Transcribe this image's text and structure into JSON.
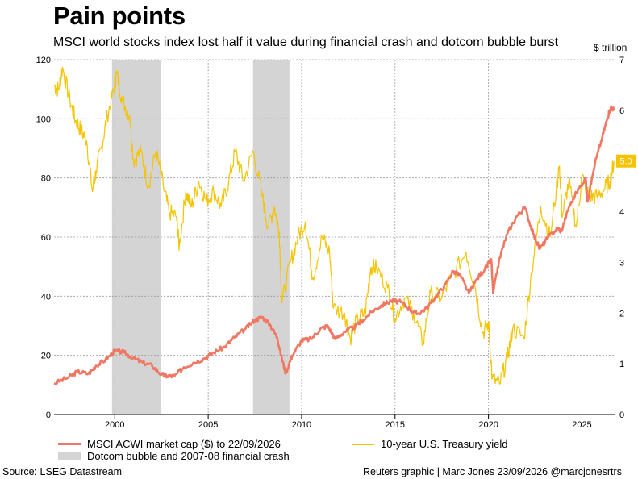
{
  "chart_data": {
    "type": "line",
    "title": "Pain points",
    "subtitle": "MSCI world stocks index lost half it value during financial crash and dotcom bubble burst",
    "left_axis": {
      "ticks": [
        0,
        20,
        40,
        60,
        80,
        100,
        120
      ],
      "range": [
        0,
        120
      ]
    },
    "right_axis": {
      "unit": "$ trillion",
      "ticks": [
        0,
        1,
        2,
        3,
        4,
        5,
        6,
        7
      ],
      "range": [
        0,
        7
      ]
    },
    "x_axis": {
      "ticks": [
        2000,
        2005,
        2010,
        2015,
        2020,
        2025
      ],
      "range": [
        1996.75,
        2026.75
      ]
    },
    "grid": true,
    "shaded_periods": [
      {
        "start": 1999.85,
        "end": 2002.45
      },
      {
        "start": 2007.4,
        "end": 2009.35
      }
    ],
    "series": [
      {
        "name": "MSCI ACWI market cap ($) to 22/09/2026",
        "color": "#f07863",
        "axis": "left",
        "points": [
          [
            1996.75,
            10.5
          ],
          [
            1997.5,
            12.5
          ],
          [
            1998.0,
            14.5
          ],
          [
            1998.6,
            13.8
          ],
          [
            1999.0,
            16.5
          ],
          [
            1999.5,
            18.5
          ],
          [
            2000.0,
            21.5
          ],
          [
            2000.5,
            21.0
          ],
          [
            2001.0,
            19.0
          ],
          [
            2001.5,
            17.5
          ],
          [
            2002.0,
            16.5
          ],
          [
            2002.5,
            13.5
          ],
          [
            2002.8,
            13.0
          ],
          [
            2003.2,
            13.0
          ],
          [
            2003.7,
            16.0
          ],
          [
            2004.2,
            17.5
          ],
          [
            2004.8,
            19.0
          ],
          [
            2005.3,
            21.0
          ],
          [
            2005.9,
            23.0
          ],
          [
            2006.4,
            26.0
          ],
          [
            2007.0,
            29.0
          ],
          [
            2007.5,
            32.0
          ],
          [
            2007.9,
            33.0
          ],
          [
            2008.3,
            30.5
          ],
          [
            2008.7,
            26.0
          ],
          [
            2008.9,
            20.0
          ],
          [
            2009.15,
            14.0
          ],
          [
            2009.5,
            20.0
          ],
          [
            2010.0,
            25.0
          ],
          [
            2010.5,
            25.5
          ],
          [
            2011.0,
            29.0
          ],
          [
            2011.4,
            30.0
          ],
          [
            2011.8,
            25.5
          ],
          [
            2012.3,
            28.0
          ],
          [
            2012.8,
            29.5
          ],
          [
            2013.3,
            32.0
          ],
          [
            2013.8,
            35.0
          ],
          [
            2014.3,
            37.0
          ],
          [
            2014.8,
            38.5
          ],
          [
            2015.3,
            38.0
          ],
          [
            2015.8,
            35.5
          ],
          [
            2016.2,
            34.0
          ],
          [
            2016.7,
            36.0
          ],
          [
            2017.2,
            40.0
          ],
          [
            2017.7,
            44.0
          ],
          [
            2018.1,
            48.5
          ],
          [
            2018.5,
            47.0
          ],
          [
            2018.95,
            41.0
          ],
          [
            2019.4,
            46.0
          ],
          [
            2019.9,
            50.0
          ],
          [
            2020.15,
            52.5
          ],
          [
            2020.25,
            41.0
          ],
          [
            2020.6,
            53.0
          ],
          [
            2021.0,
            61.0
          ],
          [
            2021.5,
            67.0
          ],
          [
            2021.95,
            70.0
          ],
          [
            2022.4,
            61.0
          ],
          [
            2022.75,
            56.0
          ],
          [
            2023.2,
            60.0
          ],
          [
            2023.7,
            63.0
          ],
          [
            2023.9,
            62.0
          ],
          [
            2024.3,
            70.0
          ],
          [
            2024.7,
            75.0
          ],
          [
            2025.2,
            80.0
          ],
          [
            2025.3,
            72.0
          ],
          [
            2025.7,
            85.0
          ],
          [
            2026.1,
            94.0
          ],
          [
            2026.35,
            100.0
          ],
          [
            2026.55,
            104.0
          ],
          [
            2026.72,
            103.0
          ]
        ]
      },
      {
        "name": "10-year U.S. Treasury yield",
        "color": "#f5c400",
        "axis": "right",
        "last_label": "5.0",
        "points": [
          [
            1996.75,
            6.5
          ],
          [
            1997.0,
            6.4
          ],
          [
            1997.2,
            6.85
          ],
          [
            1997.6,
            6.2
          ],
          [
            1997.9,
            5.8
          ],
          [
            1998.2,
            5.6
          ],
          [
            1998.5,
            5.4
          ],
          [
            1998.8,
            4.4
          ],
          [
            1999.0,
            4.8
          ],
          [
            1999.3,
            5.3
          ],
          [
            1999.6,
            5.9
          ],
          [
            1999.95,
            6.4
          ],
          [
            2000.1,
            6.75
          ],
          [
            2000.4,
            6.2
          ],
          [
            2000.8,
            5.9
          ],
          [
            2001.0,
            5.0
          ],
          [
            2001.4,
            5.2
          ],
          [
            2001.8,
            4.5
          ],
          [
            2002.2,
            5.2
          ],
          [
            2002.6,
            4.5
          ],
          [
            2002.9,
            4.0
          ],
          [
            2003.3,
            3.9
          ],
          [
            2003.45,
            3.3
          ],
          [
            2003.8,
            4.4
          ],
          [
            2004.1,
            4.1
          ],
          [
            2004.5,
            4.6
          ],
          [
            2004.9,
            4.2
          ],
          [
            2005.3,
            4.4
          ],
          [
            2005.7,
            4.1
          ],
          [
            2006.1,
            4.6
          ],
          [
            2006.45,
            5.2
          ],
          [
            2006.9,
            4.6
          ],
          [
            2007.4,
            5.2
          ],
          [
            2007.9,
            4.3
          ],
          [
            2008.2,
            3.7
          ],
          [
            2008.55,
            4.1
          ],
          [
            2008.8,
            3.6
          ],
          [
            2008.95,
            2.2
          ],
          [
            2009.4,
            3.0
          ],
          [
            2009.8,
            3.5
          ],
          [
            2010.2,
            3.8
          ],
          [
            2010.6,
            2.7
          ],
          [
            2011.1,
            3.5
          ],
          [
            2011.5,
            3.2
          ],
          [
            2011.7,
            2.1
          ],
          [
            2012.3,
            2.0
          ],
          [
            2012.6,
            1.5
          ],
          [
            2013.0,
            1.9
          ],
          [
            2013.4,
            2.0
          ],
          [
            2013.7,
            2.9
          ],
          [
            2014.0,
            2.9
          ],
          [
            2014.6,
            2.5
          ],
          [
            2015.0,
            1.9
          ],
          [
            2015.5,
            2.3
          ],
          [
            2016.0,
            2.0
          ],
          [
            2016.5,
            1.4
          ],
          [
            2016.9,
            2.4
          ],
          [
            2017.5,
            2.3
          ],
          [
            2018.0,
            2.7
          ],
          [
            2018.8,
            3.2
          ],
          [
            2019.3,
            2.5
          ],
          [
            2019.7,
            1.6
          ],
          [
            2020.0,
            1.8
          ],
          [
            2020.2,
            0.7
          ],
          [
            2020.6,
            0.6
          ],
          [
            2021.0,
            1.1
          ],
          [
            2021.3,
            1.7
          ],
          [
            2021.9,
            1.5
          ],
          [
            2022.3,
            2.8
          ],
          [
            2022.8,
            4.1
          ],
          [
            2023.3,
            3.5
          ],
          [
            2023.8,
            4.9
          ],
          [
            2023.95,
            3.9
          ],
          [
            2024.3,
            4.6
          ],
          [
            2024.7,
            3.7
          ],
          [
            2025.0,
            4.7
          ],
          [
            2025.4,
            4.3
          ],
          [
            2025.8,
            4.3
          ],
          [
            2026.2,
            4.45
          ],
          [
            2026.5,
            4.6
          ],
          [
            2026.72,
            5.0
          ]
        ]
      }
    ],
    "legend": {
      "placement": "bottom",
      "items": [
        {
          "label": "MSCI ACWI market cap ($) to 22/09/2026",
          "kind": "line",
          "color": "#f07863"
        },
        {
          "label": "10-year U.S. Treasury yield",
          "kind": "line",
          "color": "#f5c400"
        },
        {
          "label": "Dotcom bubble and 2007-08 financial crash",
          "kind": "box",
          "color": "#d4d4d4"
        }
      ]
    }
  },
  "footer": {
    "source": "Source: LSEG Datastream",
    "credit": "Reuters graphic | Marc Jones 23/09/2026 @marcjonesrtrs"
  },
  "colors": {
    "shade": "#d4d4d4",
    "grid": "#9a9a9a",
    "axis": "#000000"
  }
}
